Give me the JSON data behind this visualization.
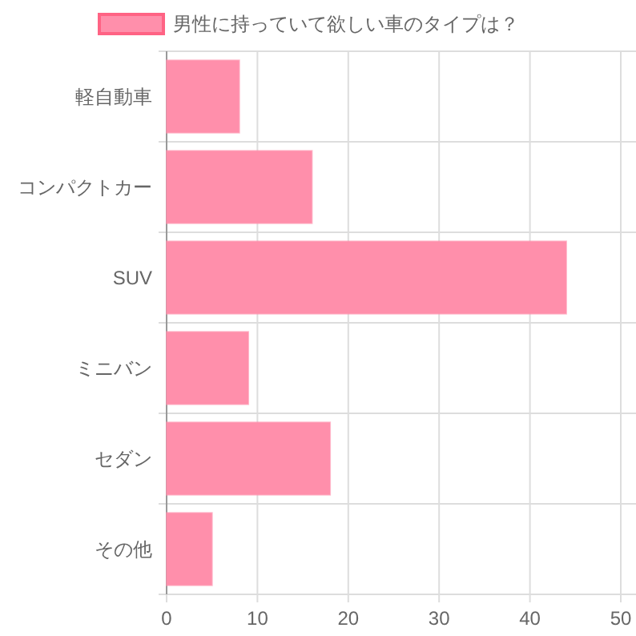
{
  "chart_data": {
    "type": "bar",
    "orientation": "horizontal",
    "categories": [
      "軽自動車",
      "コンパクトカー",
      "SUV",
      "ミニバン",
      "セダン",
      "その他"
    ],
    "series": [
      {
        "name": "男性に持っていて欲しい車のタイプは？",
        "color": "#ff8fab",
        "values": [
          8,
          16,
          44,
          9,
          18,
          5
        ]
      }
    ],
    "xlim": [
      0,
      51.5
    ],
    "xticks": [
      0,
      10,
      20,
      30,
      40,
      50
    ],
    "grid": true,
    "legend": "top"
  }
}
